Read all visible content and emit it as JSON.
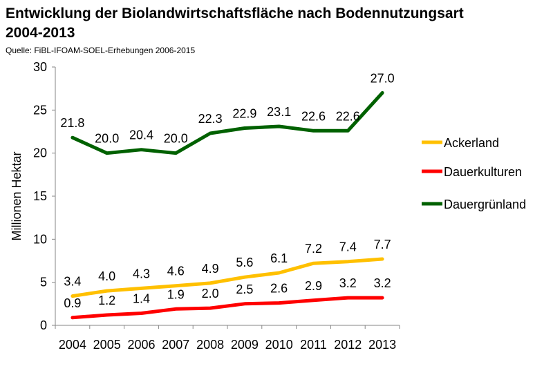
{
  "chart_data": {
    "type": "line",
    "title_line1": "Entwicklung der Biolandwirtschaftsfläche nach Bodennutzungsart",
    "title_line2": "2004-2013",
    "subtitle": "Quelle: FiBL-IFOAM-SOEL-Erhebungen 2006-2015",
    "ylabel": "Millionen Hektar",
    "xlabel": "",
    "ylim": [
      0,
      30
    ],
    "yticks": [
      "0",
      "5",
      "10",
      "15",
      "20",
      "25",
      "30"
    ],
    "categories": [
      "2004",
      "2005",
      "2006",
      "2007",
      "2008",
      "2009",
      "2010",
      "2011",
      "2012",
      "2013"
    ],
    "grid": false,
    "legend_position": "right",
    "series": [
      {
        "name": "Ackerland",
        "color": "#FFC000",
        "values": [
          3.4,
          4.0,
          4.3,
          4.6,
          4.9,
          5.6,
          6.1,
          7.2,
          7.4,
          7.7
        ],
        "labels": [
          "3.4",
          "4.0",
          "4.3",
          "4.6",
          "4.9",
          "5.6",
          "6.1",
          "7.2",
          "7.4",
          "7.7"
        ]
      },
      {
        "name": "Dauerkulturen",
        "color": "#FF0000",
        "values": [
          0.9,
          1.2,
          1.4,
          1.9,
          2.0,
          2.5,
          2.6,
          2.9,
          3.2,
          3.2
        ],
        "labels": [
          "0.9",
          "1.2",
          "1.4",
          "1.9",
          "2.0",
          "2.5",
          "2.6",
          "2.9",
          "3.2",
          "3.2"
        ]
      },
      {
        "name": "Dauergrünland",
        "color": "#006100",
        "values": [
          21.8,
          20.0,
          20.4,
          20.0,
          22.3,
          22.9,
          23.1,
          22.6,
          22.6,
          27.0
        ],
        "labels": [
          "21.8",
          "20.0",
          "20.4",
          "20.0",
          "22.3",
          "22.9",
          "23.1",
          "22.6",
          "22.6",
          "27.0"
        ]
      }
    ]
  }
}
